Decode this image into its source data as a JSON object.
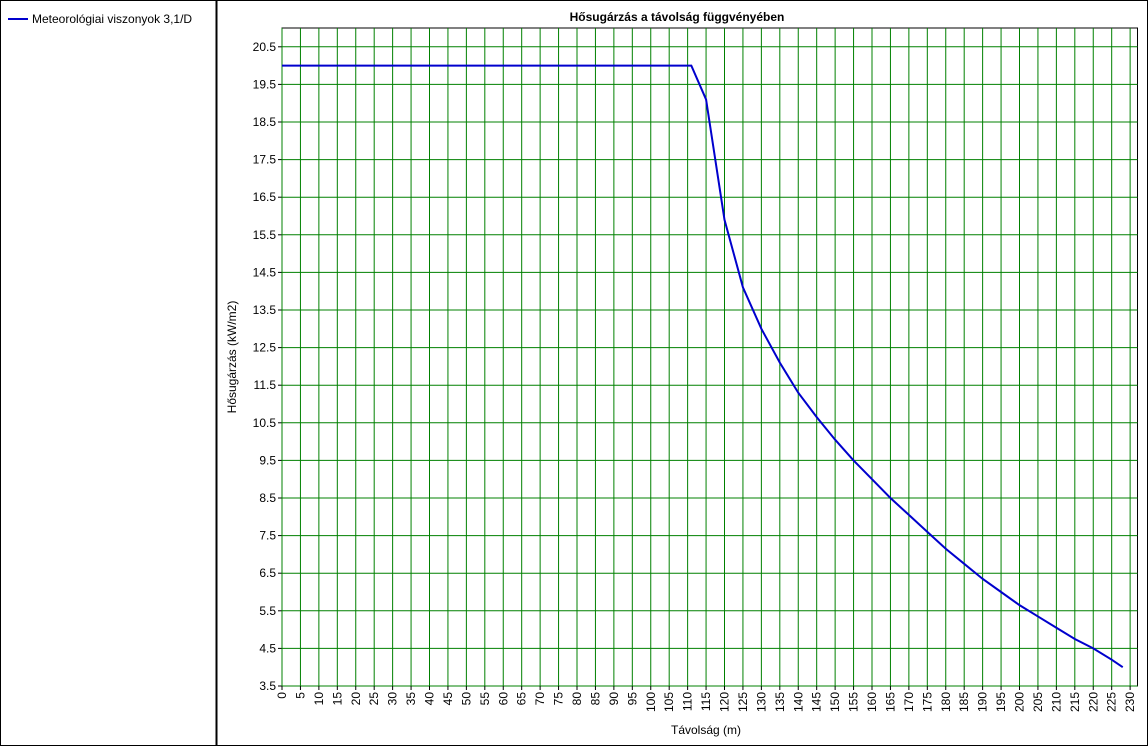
{
  "chart_data": {
    "type": "line",
    "title": "Hősugárzás a távolság függvényében",
    "xlabel": "Távolság (m)",
    "ylabel": "Hősugárzás (kW/m2)",
    "x": [
      0,
      111,
      115,
      120,
      125,
      130,
      135,
      140,
      145,
      150,
      155,
      160,
      165,
      170,
      175,
      180,
      185,
      190,
      195,
      200,
      205,
      210,
      215,
      220,
      225,
      228
    ],
    "series": [
      {
        "name": "Meteorológiai viszonyok 3,1/D",
        "color": "#0000cd",
        "values": [
          20,
          20,
          19.1,
          15.9,
          14.1,
          13.0,
          12.1,
          11.3,
          10.65,
          10.05,
          9.5,
          9.0,
          8.5,
          8.05,
          7.6,
          7.15,
          6.75,
          6.35,
          6.0,
          5.65,
          5.35,
          5.05,
          4.75,
          4.5,
          4.2,
          4.0
        ]
      }
    ],
    "xlim": [
      0,
      232
    ],
    "ylim": [
      3.5,
      21
    ],
    "xticks": [
      0,
      5,
      10,
      15,
      20,
      25,
      30,
      35,
      40,
      45,
      50,
      55,
      60,
      65,
      70,
      75,
      80,
      85,
      90,
      95,
      100,
      105,
      110,
      115,
      120,
      125,
      130,
      135,
      140,
      145,
      150,
      155,
      160,
      165,
      170,
      175,
      180,
      185,
      190,
      195,
      200,
      205,
      210,
      215,
      220,
      225,
      230
    ],
    "yticks": [
      3.5,
      4.5,
      5.5,
      6.5,
      7.5,
      8.5,
      9.5,
      10.5,
      11.5,
      12.5,
      13.5,
      14.5,
      15.5,
      16.5,
      17.5,
      18.5,
      19.5,
      20.5
    ],
    "grid": true,
    "grid_color": "#008000"
  }
}
